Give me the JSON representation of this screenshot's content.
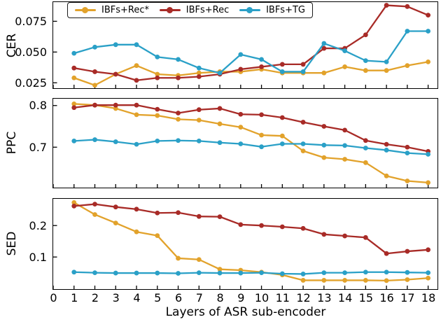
{
  "figure": {
    "xlabel": "Layers of ASR sub-encoder",
    "x_ticks": [
      0,
      1,
      2,
      3,
      4,
      5,
      6,
      7,
      8,
      9,
      10,
      11,
      12,
      13,
      14,
      15,
      16,
      17,
      18
    ],
    "xlim": [
      0,
      18.45
    ],
    "background": "#ffffff",
    "spine_color": "#000000"
  },
  "legend": {
    "items": [
      {
        "label": "IBFs+Rec*",
        "color": "#E2A22B"
      },
      {
        "label": "IBFs+Rec",
        "color": "#A82B27"
      },
      {
        "label": "IBFs+TG",
        "color": "#2AA0C7"
      }
    ]
  },
  "chart_data": [
    {
      "type": "line",
      "ylabel": "CER",
      "ylim": [
        0.0206,
        0.0906
      ],
      "yticks": [
        {
          "v": 0.025,
          "label": "0.025"
        },
        {
          "v": 0.05,
          "label": "0.050"
        },
        {
          "v": 0.075,
          "label": "0.075"
        }
      ],
      "x": [
        1,
        2,
        3,
        4,
        5,
        6,
        7,
        8,
        9,
        10,
        11,
        12,
        13,
        14,
        15,
        16,
        17,
        18
      ],
      "series": [
        {
          "name": "IBFs+Rec*",
          "color": "#E2A22B",
          "values": [
            0.029,
            0.023,
            0.032,
            0.039,
            0.032,
            0.031,
            0.033,
            0.034,
            0.034,
            0.036,
            0.033,
            0.033,
            0.033,
            0.038,
            0.035,
            0.035,
            0.039,
            0.042
          ]
        },
        {
          "name": "IBFs+Rec",
          "color": "#A82B27",
          "values": [
            0.037,
            0.034,
            0.032,
            0.027,
            0.029,
            0.029,
            0.03,
            0.032,
            0.036,
            0.038,
            0.04,
            0.04,
            0.053,
            0.053,
            0.064,
            0.088,
            0.087,
            0.08
          ]
        },
        {
          "name": "IBFs+TG",
          "color": "#2AA0C7",
          "values": [
            0.049,
            0.054,
            0.056,
            0.056,
            0.046,
            0.044,
            0.037,
            0.033,
            0.048,
            0.044,
            0.034,
            0.034,
            0.057,
            0.051,
            0.043,
            0.042,
            0.067,
            0.067
          ]
        }
      ]
    },
    {
      "type": "line",
      "ylabel": "PPC",
      "ylim": [
        0.603,
        0.8164
      ],
      "yticks": [
        {
          "v": 0.7,
          "label": "0.7"
        },
        {
          "v": 0.8,
          "label": "0.8"
        }
      ],
      "x": [
        1,
        2,
        3,
        4,
        5,
        6,
        7,
        8,
        9,
        10,
        11,
        12,
        13,
        14,
        15,
        16,
        17,
        18
      ],
      "series": [
        {
          "name": "IBFs+Rec*",
          "color": "#E2A22B",
          "values": [
            0.804,
            0.801,
            0.793,
            0.778,
            0.776,
            0.767,
            0.765,
            0.756,
            0.748,
            0.729,
            0.727,
            0.691,
            0.675,
            0.671,
            0.663,
            0.631,
            0.619,
            0.615
          ]
        },
        {
          "name": "IBFs+Rec",
          "color": "#A82B27",
          "values": [
            0.795,
            0.801,
            0.801,
            0.801,
            0.791,
            0.782,
            0.79,
            0.793,
            0.779,
            0.778,
            0.771,
            0.76,
            0.75,
            0.741,
            0.716,
            0.707,
            0.7,
            0.69
          ]
        },
        {
          "name": "IBFs+TG",
          "color": "#2AA0C7",
          "values": [
            0.715,
            0.718,
            0.713,
            0.707,
            0.715,
            0.716,
            0.715,
            0.711,
            0.708,
            0.701,
            0.708,
            0.708,
            0.705,
            0.704,
            0.698,
            0.693,
            0.686,
            0.683
          ]
        }
      ]
    },
    {
      "type": "line",
      "ylabel": "SED",
      "ylim": [
        -0.002,
        0.285
      ],
      "yticks": [
        {
          "v": 0.1,
          "label": "0.1"
        },
        {
          "v": 0.2,
          "label": "0.2"
        }
      ],
      "x": [
        1,
        2,
        3,
        4,
        5,
        6,
        7,
        8,
        9,
        10,
        11,
        12,
        13,
        14,
        15,
        16,
        17,
        18
      ],
      "series": [
        {
          "name": "IBFs+Rec*",
          "color": "#E2A22B",
          "values": [
            0.273,
            0.235,
            0.208,
            0.18,
            0.168,
            0.096,
            0.092,
            0.061,
            0.058,
            0.052,
            0.043,
            0.026,
            0.026,
            0.026,
            0.026,
            0.025,
            0.028,
            0.033
          ]
        },
        {
          "name": "IBFs+Rec",
          "color": "#A82B27",
          "values": [
            0.262,
            0.268,
            0.259,
            0.252,
            0.24,
            0.241,
            0.229,
            0.228,
            0.203,
            0.2,
            0.196,
            0.191,
            0.172,
            0.167,
            0.162,
            0.111,
            0.118,
            0.123
          ]
        },
        {
          "name": "IBFs+TG",
          "color": "#2AA0C7",
          "values": [
            0.052,
            0.05,
            0.049,
            0.049,
            0.049,
            0.048,
            0.05,
            0.049,
            0.049,
            0.05,
            0.047,
            0.046,
            0.05,
            0.05,
            0.052,
            0.052,
            0.051,
            0.05
          ]
        }
      ]
    }
  ]
}
